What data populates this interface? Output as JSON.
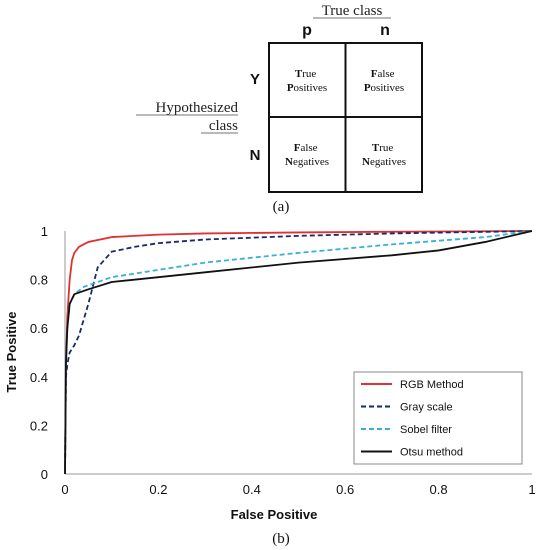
{
  "panel_a": {
    "true_class": "True class",
    "col_p": "p",
    "col_n": "n",
    "row_y": "Y",
    "row_n": "N",
    "hyp_line1": "Hypothesized",
    "hyp_line2": "class",
    "cells": {
      "tp": {
        "w1_first": "T",
        "w1_rest": "rue",
        "w2_first": "P",
        "w2_rest": "ositives"
      },
      "fp": {
        "w1_first": "F",
        "w1_rest": "alse",
        "w2_first": "P",
        "w2_rest": "ositives"
      },
      "fn": {
        "w1_first": "F",
        "w1_rest": "alse",
        "w2_first": "N",
        "w2_rest": "egatives"
      },
      "tn": {
        "w1_first": "T",
        "w1_rest": "rue",
        "w2_first": "N",
        "w2_rest": "egatives"
      }
    },
    "caption": "(a)"
  },
  "chart_data": {
    "type": "line",
    "xlabel": "False Positive",
    "ylabel": "True Positive",
    "xlim": [
      0,
      1
    ],
    "ylim": [
      0,
      1
    ],
    "x_ticks": [
      0,
      0.2,
      0.4,
      0.6,
      0.8,
      1
    ],
    "x_tick_labels": [
      "0",
      "0.2",
      "0.4",
      "0.6",
      "0.8",
      "1"
    ],
    "y_ticks": [
      0,
      0.2,
      0.4,
      0.6,
      0.8,
      1
    ],
    "y_tick_labels": [
      "0",
      "0.2",
      "0.4",
      "0.6",
      "0.8",
      "1"
    ],
    "grid": false,
    "legend_position": "bottom-right",
    "caption": "(b)",
    "series": [
      {
        "name": "RGB Method",
        "color": "#e03030",
        "dash": "solid",
        "x": [
          0,
          0.002,
          0.005,
          0.01,
          0.015,
          0.02,
          0.03,
          0.05,
          0.1,
          0.2,
          0.3,
          0.5,
          0.7,
          1
        ],
        "y": [
          0,
          0.45,
          0.65,
          0.8,
          0.88,
          0.91,
          0.935,
          0.955,
          0.975,
          0.985,
          0.99,
          0.994,
          0.997,
          1
        ]
      },
      {
        "name": "Gray scale",
        "color": "#1a2a6c",
        "dash": "dashed",
        "x": [
          0,
          0.002,
          0.005,
          0.01,
          0.02,
          0.03,
          0.05,
          0.07,
          0.1,
          0.15,
          0.2,
          0.3,
          0.5,
          0.7,
          1
        ],
        "y": [
          0,
          0.4,
          0.45,
          0.5,
          0.53,
          0.57,
          0.7,
          0.85,
          0.915,
          0.935,
          0.95,
          0.965,
          0.98,
          0.99,
          1
        ]
      },
      {
        "name": "Sobel filter",
        "color": "#3ab0d8",
        "dash": "dashed",
        "x": [
          0,
          0.002,
          0.005,
          0.01,
          0.02,
          0.04,
          0.1,
          0.2,
          0.3,
          0.5,
          0.7,
          0.9,
          1
        ],
        "y": [
          0,
          0.45,
          0.6,
          0.7,
          0.74,
          0.77,
          0.81,
          0.84,
          0.87,
          0.91,
          0.945,
          0.975,
          1
        ]
      },
      {
        "name": "Otsu method",
        "color": "#111111",
        "dash": "solid",
        "x": [
          0,
          0.002,
          0.005,
          0.01,
          0.02,
          0.05,
          0.1,
          0.2,
          0.3,
          0.5,
          0.7,
          0.8,
          0.9,
          1
        ],
        "y": [
          0,
          0.45,
          0.6,
          0.7,
          0.74,
          0.76,
          0.79,
          0.81,
          0.83,
          0.87,
          0.9,
          0.92,
          0.955,
          1
        ]
      }
    ]
  }
}
